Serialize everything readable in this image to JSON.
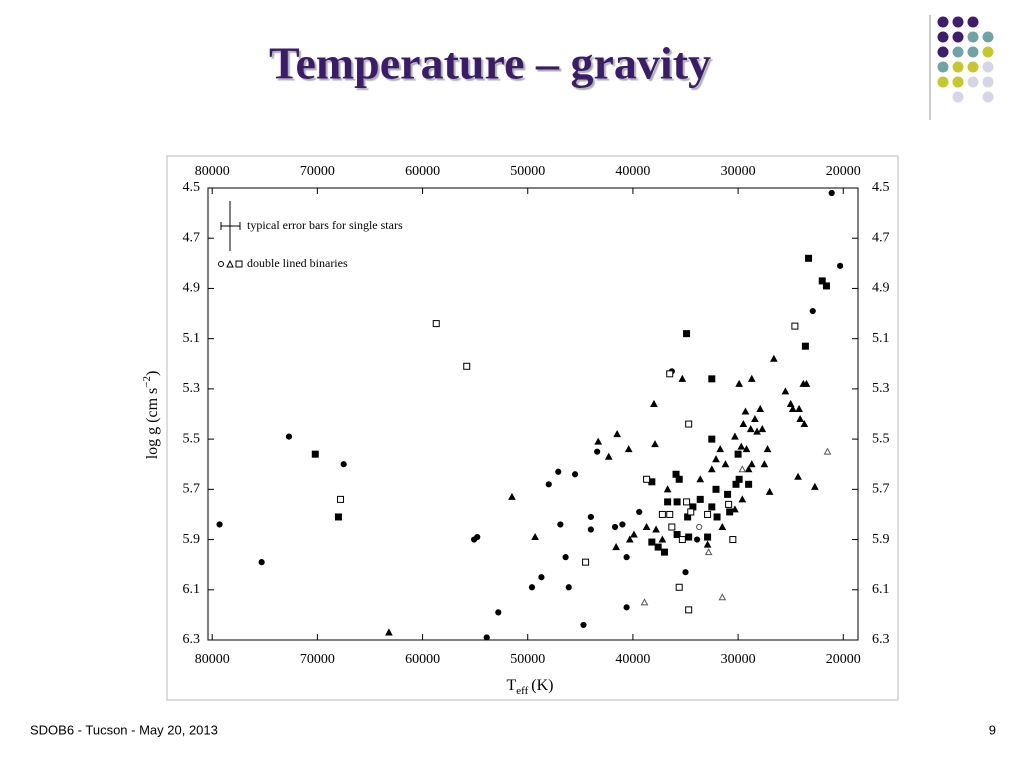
{
  "title": "Temperature – gravity",
  "footer": {
    "left": "SDOB6 - Tucson - May 20, 2013",
    "page": "9"
  },
  "chart_data": {
    "type": "scatter",
    "xlabel": [
      "T",
      "eff",
      "(K)"
    ],
    "ylabel": [
      "log g (cm s",
      "−2",
      ")"
    ],
    "annotations": [
      "typical error bars for single stars",
      "double lined binaries"
    ],
    "xlim": [
      80400,
      18600
    ],
    "ylim": [
      4.5,
      6.3
    ],
    "xticks": [
      80000,
      70000,
      60000,
      50000,
      40000,
      30000,
      20000
    ],
    "yticks": [
      4.5,
      4.7,
      4.9,
      5.1,
      5.3,
      5.5,
      5.7,
      5.9,
      6.1,
      6.3
    ],
    "series": [
      {
        "marker": "circle",
        "filled": true,
        "color": "#000000",
        "x": [
          21100,
          20300,
          22900,
          79300,
          75300,
          72700,
          67500,
          55100,
          54800,
          53900,
          52800,
          49600,
          48700,
          48000,
          47100,
          46900,
          46400,
          46100,
          45500,
          44700,
          44000,
          44000,
          43400,
          41700,
          41000,
          40600,
          40600,
          39400,
          36300,
          35000,
          33900
        ],
        "values": [
          4.52,
          4.81,
          4.99,
          5.84,
          5.99,
          5.49,
          5.6,
          5.9,
          5.89,
          6.29,
          6.19,
          6.09,
          6.05,
          5.68,
          5.63,
          5.84,
          5.97,
          6.09,
          5.64,
          6.24,
          5.81,
          5.86,
          5.55,
          5.85,
          5.84,
          6.17,
          5.97,
          5.79,
          5.23,
          6.03,
          5.9
        ]
      },
      {
        "marker": "square",
        "filled": true,
        "color": "#000000",
        "x": [
          23300,
          22000,
          21600,
          23600,
          34900,
          32500,
          70200,
          68000,
          32500,
          35900,
          35600,
          38200,
          29900,
          30200,
          29000,
          32100,
          31000,
          33600,
          36700,
          35800,
          34800,
          34300,
          32500,
          32000,
          30800,
          35800,
          34700,
          38200,
          37600,
          37000,
          30000,
          32900
        ],
        "values": [
          4.78,
          4.87,
          4.89,
          5.13,
          5.08,
          5.26,
          5.56,
          5.81,
          5.5,
          5.64,
          5.66,
          5.67,
          5.66,
          5.68,
          5.68,
          5.7,
          5.72,
          5.74,
          5.75,
          5.75,
          5.81,
          5.77,
          5.77,
          5.81,
          5.79,
          5.88,
          5.89,
          5.91,
          5.93,
          5.95,
          5.56,
          5.89
        ]
      },
      {
        "marker": "triangle",
        "filled": true,
        "color": "#000000",
        "x": [
          26600,
          63200,
          51500,
          49300,
          43300,
          41500,
          42300,
          40400,
          38000,
          37900,
          35300,
          29900,
          28700,
          25500,
          23800,
          23500,
          24800,
          24200,
          25000,
          24100,
          23700,
          28400,
          27900,
          29300,
          29500,
          28800,
          28200,
          27700,
          30300,
          29700,
          29200,
          27500,
          27200,
          28700,
          29000,
          31700,
          31200,
          32100,
          27000,
          24300,
          22700,
          32500,
          33600,
          36700,
          40300,
          39900,
          38700,
          37800,
          37200,
          32900,
          31500,
          30300,
          29600,
          41600
        ],
        "values": [
          5.18,
          6.27,
          5.73,
          5.89,
          5.51,
          5.48,
          5.57,
          5.54,
          5.36,
          5.52,
          5.26,
          5.28,
          5.26,
          5.31,
          5.28,
          5.28,
          5.38,
          5.38,
          5.36,
          5.42,
          5.44,
          5.42,
          5.38,
          5.39,
          5.44,
          5.46,
          5.47,
          5.46,
          5.49,
          5.53,
          5.54,
          5.6,
          5.54,
          5.6,
          5.62,
          5.54,
          5.6,
          5.58,
          5.71,
          5.65,
          5.69,
          5.62,
          5.66,
          5.7,
          5.9,
          5.88,
          5.85,
          5.86,
          5.9,
          5.92,
          5.85,
          5.78,
          5.74,
          5.93
        ]
      },
      {
        "marker": "square",
        "filled": false,
        "color": "#000000",
        "x": [
          58700,
          55800,
          67800,
          24600,
          36500,
          34700,
          38700,
          34900,
          34500,
          36500,
          37200,
          32900,
          36300,
          35300,
          30500,
          44500,
          35600,
          34700,
          30900
        ],
        "values": [
          5.04,
          5.21,
          5.74,
          5.05,
          5.24,
          5.44,
          5.66,
          5.75,
          5.79,
          5.8,
          5.8,
          5.8,
          5.85,
          5.9,
          5.9,
          5.99,
          6.09,
          6.18,
          5.76
        ]
      },
      {
        "marker": "triangle",
        "filled": false,
        "color": "#555555",
        "x": [
          21500,
          29600,
          32800,
          38900,
          31500
        ],
        "values": [
          5.55,
          5.62,
          5.95,
          6.15,
          6.13
        ]
      },
      {
        "marker": "circle",
        "filled": false,
        "color": "#555555",
        "x": [
          33700
        ],
        "values": [
          5.85
        ]
      }
    ]
  }
}
